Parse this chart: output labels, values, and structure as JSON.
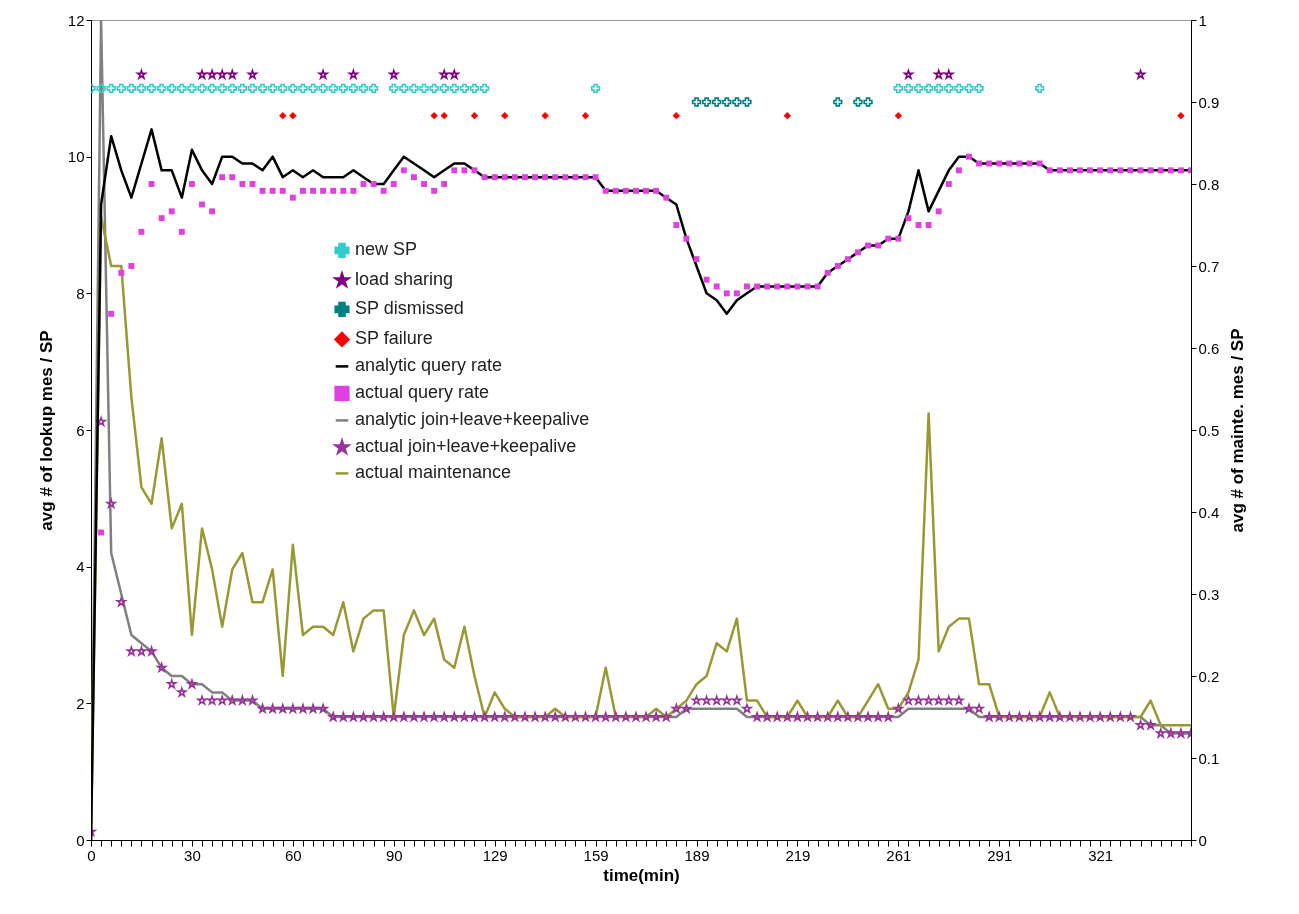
{
  "chart_data": {
    "type": "line",
    "xlabel": "time(min)",
    "ylabel": "avg # of lookup mes / SP",
    "y2label": "avg # of mainte. mes / SP",
    "categories": [
      "0",
      null,
      null,
      null,
      null,
      null,
      null,
      null,
      null,
      null,
      "30",
      null,
      null,
      null,
      null,
      null,
      null,
      null,
      null,
      null,
      "60",
      null,
      null,
      null,
      null,
      null,
      null,
      null,
      null,
      null,
      "90",
      null,
      null,
      null,
      null,
      null,
      null,
      null,
      null,
      null,
      "129",
      null,
      null,
      null,
      null,
      null,
      null,
      null,
      null,
      null,
      "159",
      null,
      null,
      null,
      null,
      null,
      null,
      null,
      null,
      null,
      "189",
      null,
      null,
      null,
      null,
      null,
      null,
      null,
      null,
      null,
      "219",
      null,
      null,
      null,
      null,
      null,
      null,
      null,
      null,
      null,
      "261",
      null,
      null,
      null,
      null,
      null,
      null,
      null,
      null,
      null,
      "291",
      null,
      null,
      null,
      null,
      null,
      null,
      null,
      null,
      null,
      "321",
      null,
      null,
      null,
      null,
      null,
      null,
      null,
      null,
      null
    ],
    "ylim": [
      0,
      12
    ],
    "yticks": [
      0,
      2,
      4,
      6,
      8,
      10,
      12
    ],
    "y2lim": [
      0,
      1
    ],
    "y2ticks": [
      0,
      0.1,
      0.2,
      0.3,
      0.4,
      0.5,
      0.6,
      0.7,
      0.8,
      0.9,
      1
    ],
    "legend": "center",
    "series": [
      {
        "name": "new SP",
        "color": "#33cccc",
        "type": "scatter",
        "marker": "cross",
        "values": [
          11,
          11,
          11,
          11,
          11,
          11,
          11,
          11,
          11,
          11,
          11,
          11,
          11,
          11,
          11,
          11,
          11,
          11,
          11,
          11,
          11,
          11,
          11,
          11,
          11,
          11,
          11,
          11,
          11,
          null,
          11,
          11,
          11,
          11,
          11,
          11,
          11,
          11,
          11,
          11,
          null,
          null,
          null,
          null,
          null,
          null,
          null,
          null,
          null,
          null,
          11,
          null,
          null,
          null,
          null,
          null,
          null,
          null,
          null,
          null,
          null,
          null,
          null,
          null,
          null,
          null,
          null,
          null,
          null,
          null,
          null,
          null,
          null,
          null,
          null,
          null,
          null,
          null,
          null,
          null,
          11,
          11,
          11,
          11,
          11,
          11,
          11,
          11,
          11,
          null,
          null,
          null,
          null,
          null,
          11,
          null,
          null,
          null,
          null,
          null,
          null,
          null,
          null,
          null,
          null,
          null,
          null,
          null,
          null,
          null
        ]
      },
      {
        "name": "load sharing",
        "color": "#800080",
        "type": "scatter",
        "marker": "star",
        "values": [
          null,
          null,
          null,
          null,
          null,
          11.2,
          null,
          null,
          null,
          null,
          null,
          11.2,
          11.2,
          11.2,
          11.2,
          null,
          11.2,
          null,
          null,
          null,
          null,
          null,
          null,
          11.2,
          null,
          null,
          11.2,
          null,
          null,
          null,
          11.2,
          null,
          null,
          null,
          null,
          11.2,
          11.2,
          null,
          null,
          null,
          null,
          null,
          null,
          null,
          null,
          null,
          null,
          null,
          null,
          null,
          null,
          null,
          null,
          null,
          null,
          null,
          null,
          null,
          null,
          null,
          null,
          null,
          null,
          null,
          null,
          null,
          null,
          null,
          null,
          null,
          null,
          null,
          null,
          null,
          null,
          null,
          null,
          null,
          null,
          null,
          null,
          11.2,
          null,
          null,
          11.2,
          11.2,
          null,
          null,
          null,
          null,
          null,
          null,
          null,
          null,
          null,
          null,
          null,
          null,
          null,
          null,
          null,
          null,
          null,
          null,
          11.2,
          null,
          null,
          null,
          null,
          null
        ]
      },
      {
        "name": "SP dismissed",
        "color": "#008080",
        "type": "scatter",
        "marker": "cross",
        "values": [
          null,
          null,
          null,
          null,
          null,
          null,
          null,
          null,
          null,
          null,
          null,
          null,
          null,
          null,
          null,
          null,
          null,
          null,
          null,
          null,
          null,
          null,
          null,
          null,
          null,
          null,
          null,
          null,
          null,
          null,
          null,
          null,
          null,
          null,
          null,
          null,
          null,
          null,
          null,
          null,
          null,
          null,
          null,
          null,
          null,
          null,
          null,
          null,
          null,
          null,
          null,
          null,
          null,
          null,
          null,
          null,
          null,
          null,
          null,
          null,
          10.8,
          10.8,
          10.8,
          10.8,
          10.8,
          10.8,
          null,
          null,
          null,
          null,
          null,
          null,
          null,
          null,
          10.8,
          null,
          10.8,
          10.8,
          null,
          null,
          null,
          null,
          null,
          null,
          null,
          null,
          null,
          null,
          null,
          null,
          null,
          null,
          null,
          null,
          null,
          null,
          null,
          null,
          null,
          null,
          null,
          null,
          null,
          null,
          null,
          null,
          null,
          null,
          null,
          null
        ]
      },
      {
        "name": "SP failure",
        "color": "#ff0000",
        "type": "scatter",
        "marker": "diamond",
        "values": [
          null,
          null,
          null,
          null,
          null,
          null,
          null,
          null,
          null,
          null,
          null,
          null,
          null,
          null,
          null,
          null,
          null,
          null,
          null,
          10.6,
          10.6,
          null,
          null,
          null,
          null,
          null,
          null,
          null,
          null,
          null,
          null,
          null,
          null,
          null,
          10.6,
          10.6,
          null,
          null,
          10.6,
          null,
          null,
          10.6,
          null,
          null,
          null,
          10.6,
          null,
          null,
          null,
          10.6,
          null,
          null,
          null,
          null,
          null,
          null,
          null,
          null,
          10.6,
          null,
          null,
          null,
          null,
          null,
          null,
          null,
          null,
          null,
          null,
          10.6,
          null,
          null,
          null,
          null,
          null,
          null,
          null,
          null,
          null,
          null,
          10.6,
          null,
          null,
          null,
          null,
          null,
          null,
          null,
          null,
          null,
          null,
          null,
          null,
          null,
          null,
          null,
          null,
          null,
          null,
          null,
          null,
          null,
          null,
          null,
          null,
          null,
          null,
          null,
          10.6,
          null
        ]
      },
      {
        "name": "analytic query rate",
        "color": "#000000",
        "values": [
          0,
          9.3,
          10.3,
          9.8,
          9.4,
          9.9,
          10.4,
          9.8,
          9.8,
          9.4,
          10.1,
          9.8,
          9.6,
          10,
          10,
          9.9,
          9.9,
          9.8,
          10,
          9.7,
          9.8,
          9.7,
          9.8,
          9.7,
          9.7,
          9.7,
          9.8,
          9.7,
          9.6,
          9.6,
          9.8,
          10,
          9.9,
          9.8,
          9.7,
          9.8,
          9.9,
          9.9,
          9.8,
          9.7,
          9.7,
          9.7,
          9.7,
          9.7,
          9.7,
          9.7,
          9.7,
          9.7,
          9.7,
          9.7,
          9.7,
          9.5,
          9.5,
          9.5,
          9.5,
          9.5,
          9.5,
          9.4,
          9.3,
          8.8,
          8.4,
          8,
          7.9,
          7.7,
          7.9,
          8,
          8.1,
          8.1,
          8.1,
          8.1,
          8.1,
          8.1,
          8.1,
          8.3,
          8.4,
          8.5,
          8.6,
          8.7,
          8.7,
          8.8,
          8.8,
          9.2,
          9.8,
          9.2,
          9.5,
          9.8,
          10,
          10,
          9.9,
          9.9,
          9.9,
          9.9,
          9.9,
          9.9,
          9.9,
          9.8,
          9.8,
          9.8,
          9.8,
          9.8,
          9.8,
          9.8,
          9.8,
          9.8,
          9.8,
          9.8,
          9.8,
          9.8,
          9.8,
          9.8
        ]
      },
      {
        "name": "actual query rate",
        "color": "#e040e0",
        "type": "scatter",
        "marker": "square",
        "values": [
          null,
          4.5,
          7.7,
          8.3,
          8.4,
          8.9,
          9.6,
          9.1,
          9.2,
          8.9,
          9.6,
          9.3,
          9.2,
          9.7,
          9.7,
          9.6,
          9.6,
          9.5,
          9.5,
          9.5,
          9.4,
          9.5,
          9.5,
          9.5,
          9.5,
          9.5,
          9.5,
          9.6,
          9.6,
          9.5,
          9.6,
          9.8,
          9.7,
          9.6,
          9.5,
          9.6,
          9.8,
          9.8,
          9.8,
          9.7,
          9.7,
          9.7,
          9.7,
          9.7,
          9.7,
          9.7,
          9.7,
          9.7,
          9.7,
          9.7,
          9.7,
          9.5,
          9.5,
          9.5,
          9.5,
          9.5,
          9.5,
          9.4,
          9,
          8.8,
          8.5,
          8.2,
          8.1,
          8,
          8,
          8.1,
          8.1,
          8.1,
          8.1,
          8.1,
          8.1,
          8.1,
          8.1,
          8.3,
          8.4,
          8.5,
          8.6,
          8.7,
          8.7,
          8.8,
          8.8,
          9.1,
          9,
          9,
          9.2,
          9.6,
          9.8,
          10,
          9.9,
          9.9,
          9.9,
          9.9,
          9.9,
          9.9,
          9.9,
          9.8,
          9.8,
          9.8,
          9.8,
          9.8,
          9.8,
          9.8,
          9.8,
          9.8,
          9.8,
          9.8,
          9.8,
          9.8,
          9.8,
          9.8
        ]
      },
      {
        "name": "analytic join+leave+keepalive",
        "color": "#808080",
        "axis": "y2",
        "values": [
          0,
          1,
          0.35,
          0.3,
          0.25,
          0.24,
          0.23,
          0.21,
          0.2,
          0.2,
          0.19,
          0.19,
          0.18,
          0.18,
          0.17,
          0.17,
          0.17,
          0.16,
          0.16,
          0.16,
          0.16,
          0.16,
          0.16,
          0.16,
          0.15,
          0.15,
          0.15,
          0.15,
          0.15,
          0.15,
          0.15,
          0.15,
          0.15,
          0.15,
          0.15,
          0.15,
          0.15,
          0.15,
          0.15,
          0.15,
          0.15,
          0.15,
          0.15,
          0.15,
          0.15,
          0.15,
          0.15,
          0.15,
          0.15,
          0.15,
          0.15,
          0.15,
          0.15,
          0.15,
          0.15,
          0.15,
          0.15,
          0.15,
          0.15,
          0.16,
          0.16,
          0.16,
          0.16,
          0.16,
          0.16,
          0.15,
          0.15,
          0.15,
          0.15,
          0.15,
          0.15,
          0.15,
          0.15,
          0.15,
          0.15,
          0.15,
          0.15,
          0.15,
          0.15,
          0.15,
          0.15,
          0.16,
          0.16,
          0.16,
          0.16,
          0.16,
          0.16,
          0.16,
          0.15,
          0.15,
          0.15,
          0.15,
          0.15,
          0.15,
          0.15,
          0.15,
          0.15,
          0.15,
          0.15,
          0.15,
          0.15,
          0.15,
          0.15,
          0.15,
          0.15,
          0.14,
          0.14,
          0.13,
          0.13,
          0.13
        ]
      },
      {
        "name": "actual join+leave+keepalive",
        "color": "#993399",
        "type": "scatter",
        "marker": "star",
        "axis": "y2",
        "values": [
          0.01,
          0.51,
          0.41,
          0.29,
          0.23,
          0.23,
          0.23,
          0.21,
          0.19,
          0.18,
          0.19,
          0.17,
          0.17,
          0.17,
          0.17,
          0.17,
          0.17,
          0.16,
          0.16,
          0.16,
          0.16,
          0.16,
          0.16,
          0.16,
          0.15,
          0.15,
          0.15,
          0.15,
          0.15,
          0.15,
          0.15,
          0.15,
          0.15,
          0.15,
          0.15,
          0.15,
          0.15,
          0.15,
          0.15,
          0.15,
          0.15,
          0.15,
          0.15,
          0.15,
          0.15,
          0.15,
          0.15,
          0.15,
          0.15,
          0.15,
          0.15,
          0.15,
          0.15,
          0.15,
          0.15,
          0.15,
          0.15,
          0.15,
          0.16,
          0.16,
          0.17,
          0.17,
          0.17,
          0.17,
          0.17,
          0.16,
          0.15,
          0.15,
          0.15,
          0.15,
          0.15,
          0.15,
          0.15,
          0.15,
          0.15,
          0.15,
          0.15,
          0.15,
          0.15,
          0.15,
          0.16,
          0.17,
          0.17,
          0.17,
          0.17,
          0.17,
          0.17,
          0.16,
          0.16,
          0.15,
          0.15,
          0.15,
          0.15,
          0.15,
          0.15,
          0.15,
          0.15,
          0.15,
          0.15,
          0.15,
          0.15,
          0.15,
          0.15,
          0.15,
          0.14,
          0.14,
          0.13,
          0.13,
          0.13,
          0.13
        ]
      },
      {
        "name": "actual maintenance",
        "color": "#999933",
        "axis": "y2",
        "values": [
          0,
          0.76,
          0.7,
          0.7,
          0.54,
          0.43,
          0.41,
          0.49,
          0.38,
          0.41,
          0.25,
          0.38,
          0.33,
          0.26,
          0.33,
          0.35,
          0.29,
          0.29,
          0.33,
          0.2,
          0.36,
          0.25,
          0.26,
          0.26,
          0.25,
          0.29,
          0.23,
          0.27,
          0.28,
          0.28,
          0.15,
          0.25,
          0.28,
          0.25,
          0.27,
          0.22,
          0.21,
          0.26,
          0.2,
          0.15,
          0.18,
          0.16,
          0.15,
          0.15,
          0.15,
          0.15,
          0.16,
          0.15,
          0.15,
          0.15,
          0.15,
          0.21,
          0.15,
          0.15,
          0.15,
          0.15,
          0.16,
          0.15,
          0.16,
          0.17,
          0.19,
          0.2,
          0.24,
          0.23,
          0.27,
          0.17,
          0.17,
          0.15,
          0.15,
          0.15,
          0.17,
          0.15,
          0.15,
          0.15,
          0.17,
          0.15,
          0.15,
          0.17,
          0.19,
          0.16,
          0.16,
          0.18,
          0.22,
          0.52,
          0.23,
          0.26,
          0.27,
          0.27,
          0.19,
          0.19,
          0.15,
          0.15,
          0.15,
          0.15,
          0.15,
          0.18,
          0.15,
          0.15,
          0.15,
          0.15,
          0.15,
          0.15,
          0.15,
          0.15,
          0.15,
          0.17,
          0.14,
          0.14,
          0.14,
          0.14
        ]
      }
    ]
  }
}
